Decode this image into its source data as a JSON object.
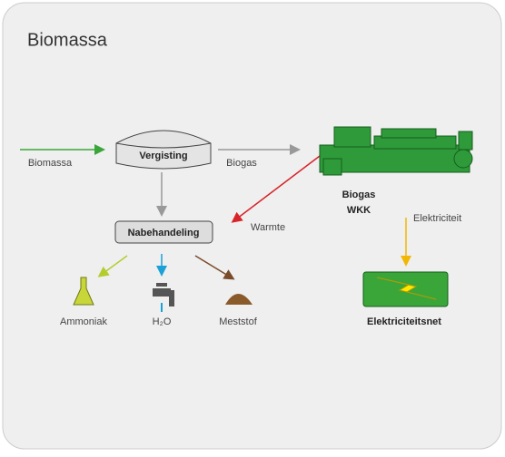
{
  "title": "Biomassa",
  "nodes": [
    {
      "label": "Vergisting"
    },
    {
      "label": "Nabehandeling"
    },
    {
      "label": [
        "Biogas",
        "WKK"
      ]
    },
    {
      "label": "Elektriciteitsnet"
    }
  ],
  "edges": [
    {
      "label": "Biomassa"
    },
    {
      "label": "Biogas"
    },
    {
      "label": "Warmte"
    },
    {
      "label": "Elektriciteit"
    }
  ],
  "outputs": [
    {
      "label": "Ammoniak"
    },
    {
      "label": "H₂O"
    },
    {
      "label": "Meststof"
    }
  ]
}
